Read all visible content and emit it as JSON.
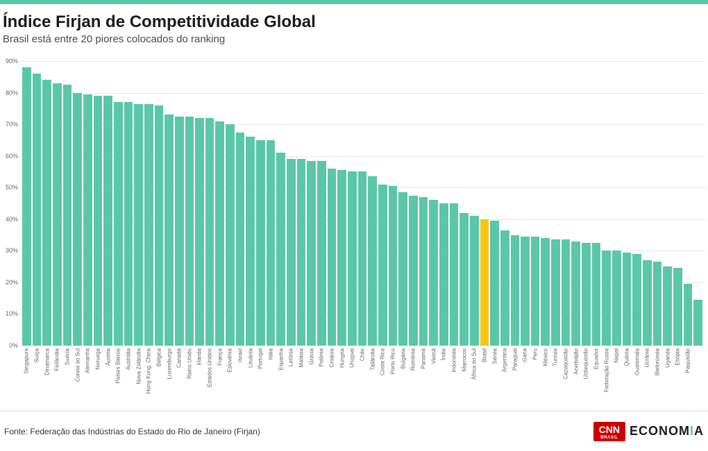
{
  "style": {
    "accent_color": "#5ac7a8",
    "highlight_color": "#f5c518",
    "text_color": "#1a1a1a",
    "subtext_color": "#666666",
    "grid_color": "#e6e6e6",
    "background": "#ffffff",
    "cnn_red": "#cc0000"
  },
  "header": {
    "title": "Índice Firjan de Competitividade Global",
    "subtitle": "Brasil está entre 20 piores colocados do ranking"
  },
  "chart": {
    "type": "bar",
    "ymax": 90,
    "ymin": 0,
    "ytick_step": 10,
    "ytick_suffix": "%",
    "bar_color": "#5ac7a8",
    "highlight_bar_color": "#f5c518",
    "highlight_label": "Brasil",
    "bar_width_ratio": 1.0,
    "grid_color": "#e6e6e6",
    "label_fontsize": 8,
    "axis_fontsize": 9,
    "data": [
      {
        "label": "Singapura",
        "value": 88
      },
      {
        "label": "Suíça",
        "value": 86
      },
      {
        "label": "Dinamarca",
        "value": 84
      },
      {
        "label": "Finlândia",
        "value": 83
      },
      {
        "label": "Suécia",
        "value": 82.5
      },
      {
        "label": "Coreia do Sul",
        "value": 80
      },
      {
        "label": "Alemanha",
        "value": 79.5
      },
      {
        "label": "Noruega",
        "value": 79
      },
      {
        "label": "Áustria",
        "value": 79
      },
      {
        "label": "Países Baixos",
        "value": 77
      },
      {
        "label": "Austrália",
        "value": 77
      },
      {
        "label": "Nova Zelândia",
        "value": 76.5
      },
      {
        "label": "Hong Kong, China",
        "value": 76.5
      },
      {
        "label": "Bélgica",
        "value": 76
      },
      {
        "label": "Luxemburgo",
        "value": 73
      },
      {
        "label": "Canadá",
        "value": 72.5
      },
      {
        "label": "Reino Unido",
        "value": 72.5
      },
      {
        "label": "Irlanda",
        "value": 72
      },
      {
        "label": "Estados Unidos",
        "value": 72
      },
      {
        "label": "França",
        "value": 71
      },
      {
        "label": "Eslovênia",
        "value": 70
      },
      {
        "label": "Israel",
        "value": 67.5
      },
      {
        "label": "Lituânia",
        "value": 66
      },
      {
        "label": "Portugal",
        "value": 65
      },
      {
        "label": "Itália",
        "value": 65
      },
      {
        "label": "Espanha",
        "value": 61
      },
      {
        "label": "Letônia",
        "value": 59
      },
      {
        "label": "Malásia",
        "value": 59
      },
      {
        "label": "Grécia",
        "value": 58.5
      },
      {
        "label": "Polônia",
        "value": 58.5
      },
      {
        "label": "Croácia",
        "value": 56
      },
      {
        "label": "Hungria",
        "value": 55.5
      },
      {
        "label": "Uruguai",
        "value": 55
      },
      {
        "label": "Chile",
        "value": 55
      },
      {
        "label": "Tailândia",
        "value": 53.5
      },
      {
        "label": "Costa Rica",
        "value": 51
      },
      {
        "label": "Porto Rico",
        "value": 50.5
      },
      {
        "label": "Bulgária",
        "value": 48.5
      },
      {
        "label": "Romênia",
        "value": 47.5
      },
      {
        "label": "Panamá",
        "value": 47
      },
      {
        "label": "Vietnã",
        "value": 46
      },
      {
        "label": "Índia",
        "value": 45
      },
      {
        "label": "Indonésia",
        "value": 45
      },
      {
        "label": "Marrocos",
        "value": 42
      },
      {
        "label": "África do Sul",
        "value": 41
      },
      {
        "label": "Brasil",
        "value": 40
      },
      {
        "label": "Sérvia",
        "value": 39.5
      },
      {
        "label": "Argentina",
        "value": 36.5
      },
      {
        "label": "Paraguai",
        "value": 35
      },
      {
        "label": "Gana",
        "value": 34.5
      },
      {
        "label": "Peru",
        "value": 34.5
      },
      {
        "label": "México",
        "value": 34
      },
      {
        "label": "Tunísia",
        "value": 33.5
      },
      {
        "label": "Cazaquistão",
        "value": 33.5
      },
      {
        "label": "Azerbaijão",
        "value": 33
      },
      {
        "label": "Uzbequistão",
        "value": 32.5
      },
      {
        "label": "Equador",
        "value": 32.5
      },
      {
        "label": "Federação Russa",
        "value": 30
      },
      {
        "label": "Nepal",
        "value": 30
      },
      {
        "label": "Quénia",
        "value": 29.5
      },
      {
        "label": "Guatemala",
        "value": 29
      },
      {
        "label": "Ucrânia",
        "value": 27
      },
      {
        "label": "Bielorússia",
        "value": 26.5
      },
      {
        "label": "Uganda",
        "value": 25
      },
      {
        "label": "Etiópia",
        "value": 24.5
      },
      {
        "label": "Paquistão",
        "value": 19.5
      },
      {
        "label": "",
        "value": 14.5
      }
    ]
  },
  "footer": {
    "source": "Fonte: Federação das Indústrias do Estado do Rio de Janeiro (Firjan)",
    "logo1_main": "CNN",
    "logo1_sub": "BRASIL",
    "logo2_pre": "ECONOM",
    "logo2_accent": "I",
    "logo2_post": "A"
  }
}
